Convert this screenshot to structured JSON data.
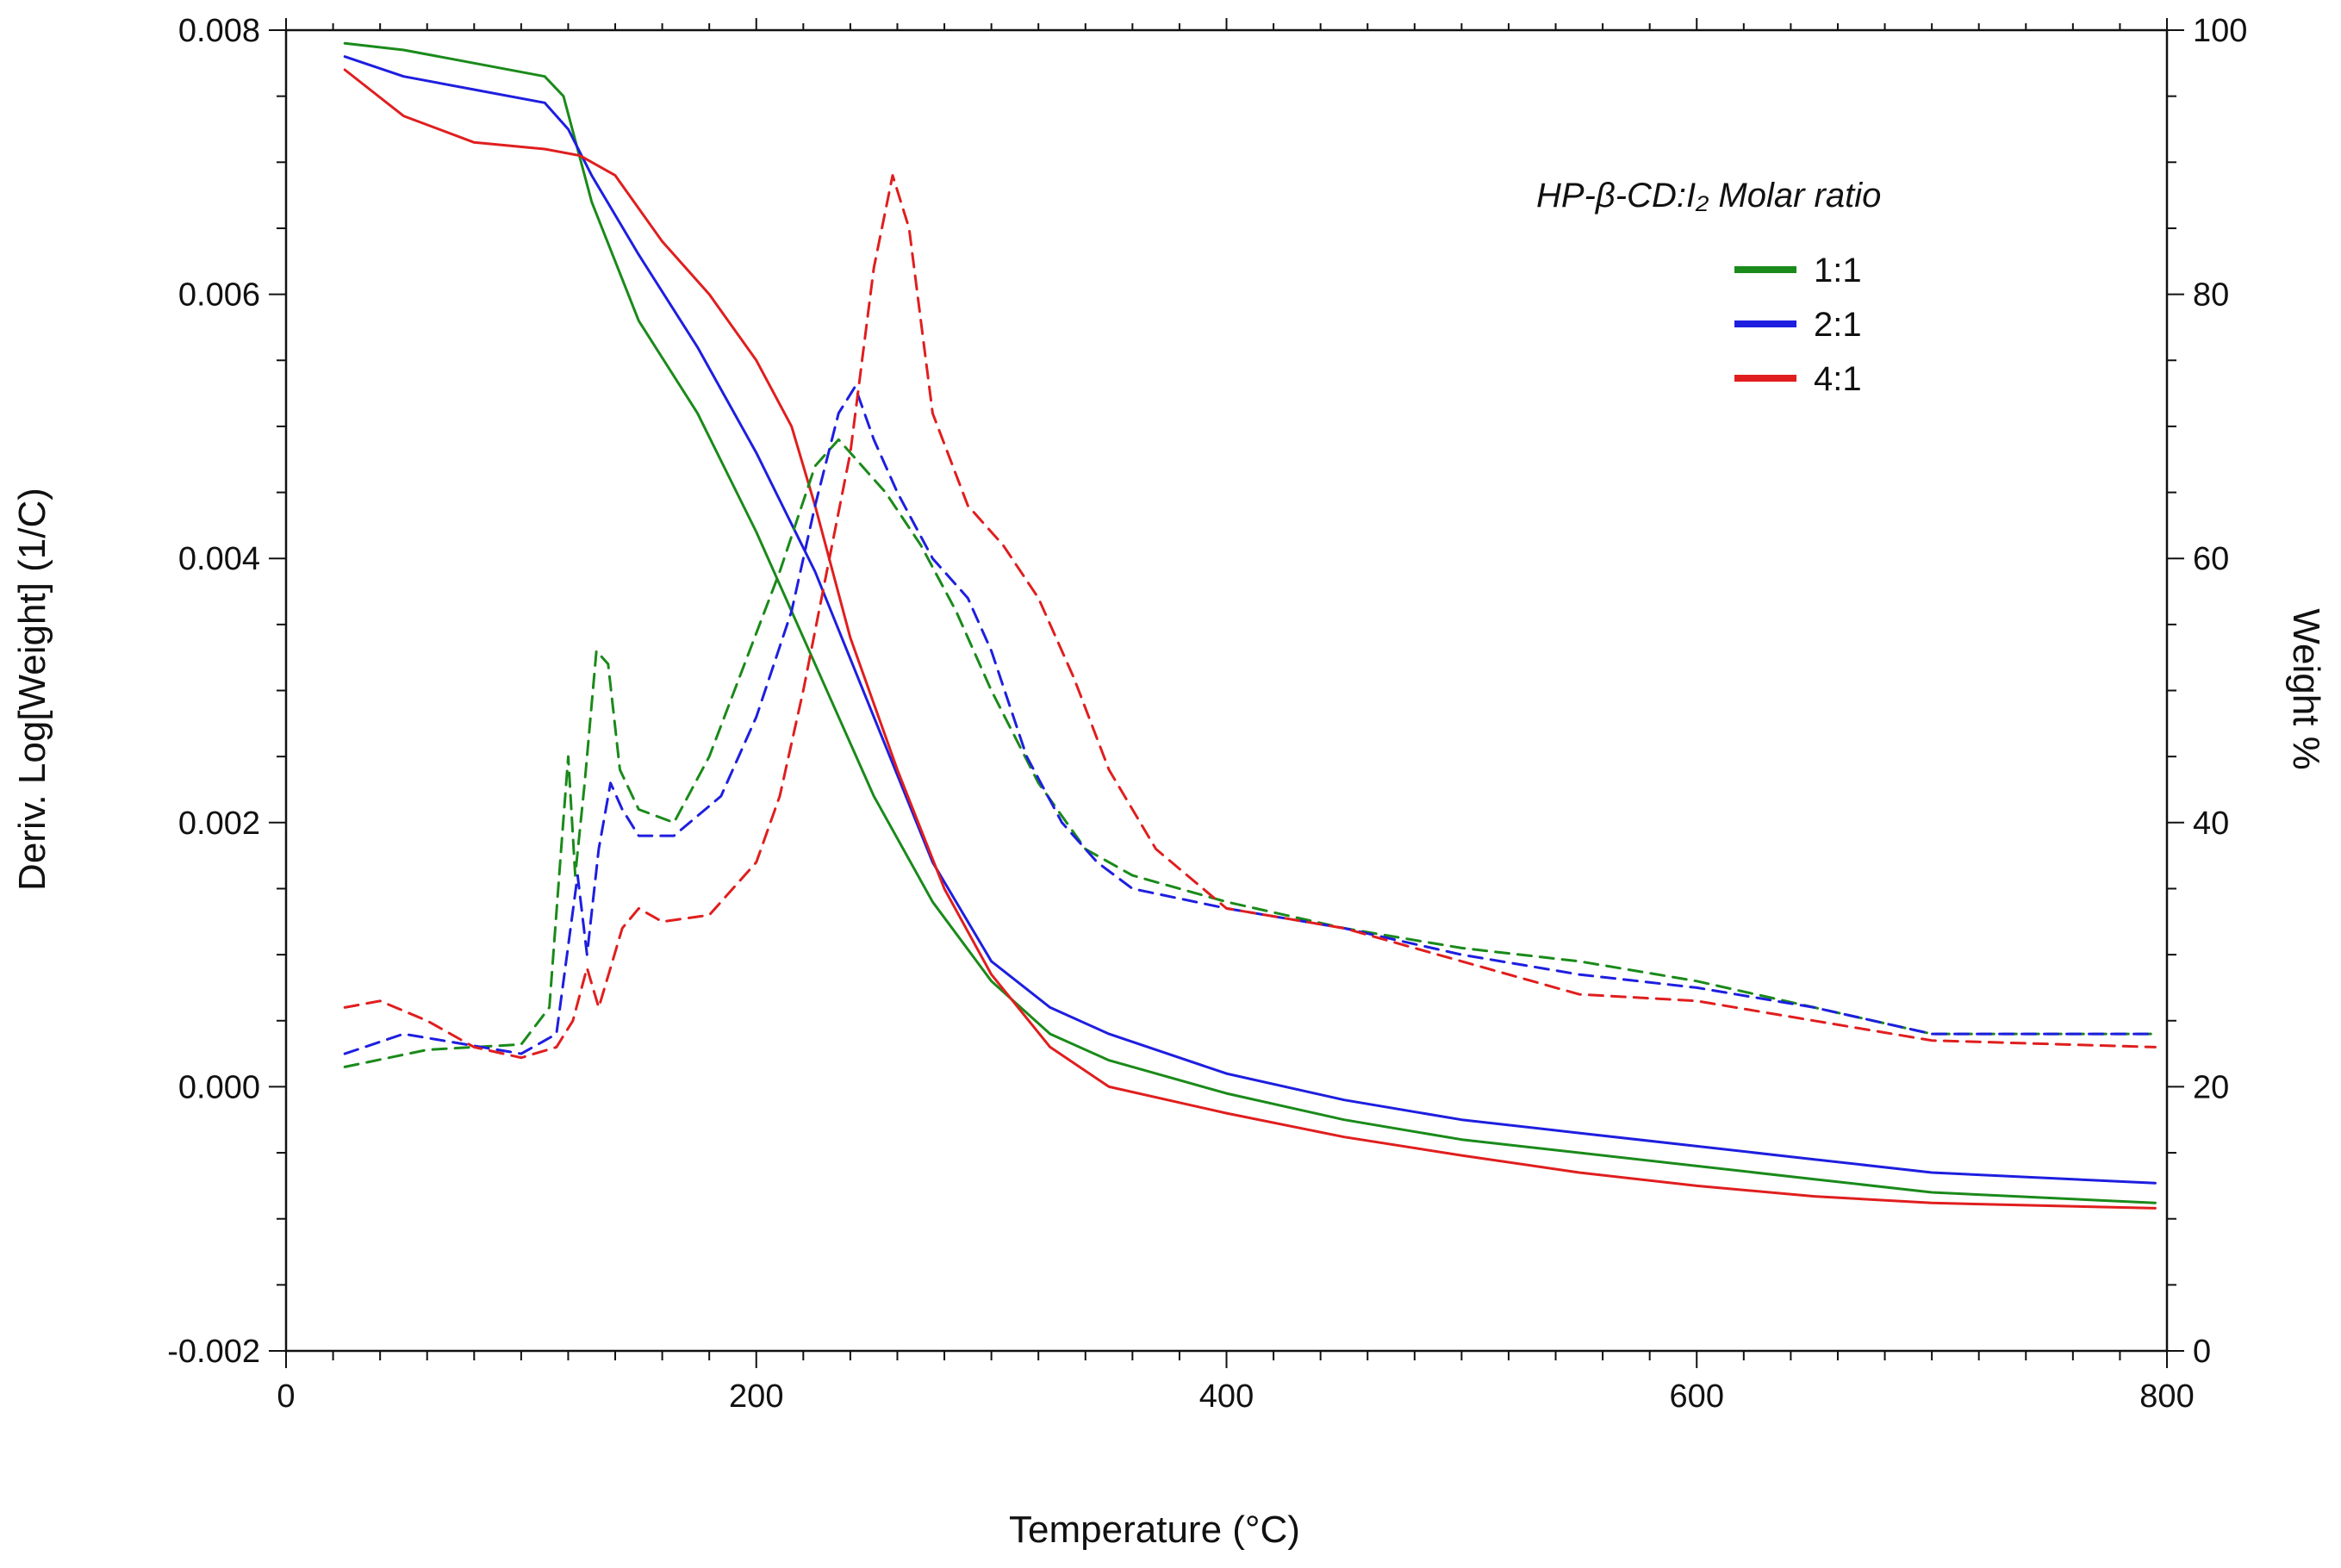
{
  "chart_data": {
    "type": "line",
    "xlabel": "Temperature (°C)",
    "ylabel_left": "Deriv. Log[Weight] (1/C)",
    "ylabel_right": "Weight %",
    "x_range": [
      0,
      800
    ],
    "y_left_range": [
      -0.002,
      0.008
    ],
    "y_right_range": [
      0,
      100
    ],
    "x_ticks": [
      "0",
      "200",
      "400",
      "600",
      "800"
    ],
    "y_left_ticks": [
      "-0.002",
      "0.000",
      "0.002",
      "0.004",
      "0.006",
      "0.008"
    ],
    "y_right_ticks": [
      "0",
      "20",
      "40",
      "60",
      "80",
      "100"
    ],
    "legend": {
      "title": "HP-β-CD:I₂ Molar ratio",
      "position": "top-right",
      "entries": [
        {
          "label": "1:1",
          "color": "#1a8a1a"
        },
        {
          "label": "2:1",
          "color": "#1e1ee0"
        },
        {
          "label": "4:1",
          "color": "#e01e1e"
        }
      ]
    },
    "series": [
      {
        "name": "1:1 Weight %",
        "ratio": "1:1",
        "color": "#1a8a1a",
        "style": "solid",
        "axis": "right",
        "x": [
          25,
          50,
          80,
          110,
          118,
          130,
          150,
          175,
          200,
          225,
          250,
          275,
          300,
          325,
          350,
          400,
          450,
          500,
          550,
          600,
          650,
          700,
          795
        ],
        "y": [
          99,
          98.5,
          97.5,
          96.5,
          95,
          87,
          78,
          71,
          62,
          52,
          42,
          34,
          28,
          24,
          22,
          19.5,
          17.5,
          16,
          15,
          14,
          13,
          12,
          11.2
        ]
      },
      {
        "name": "2:1 Weight %",
        "ratio": "2:1",
        "color": "#1e1ee0",
        "style": "solid",
        "axis": "right",
        "x": [
          25,
          50,
          80,
          110,
          120,
          130,
          150,
          175,
          200,
          225,
          250,
          275,
          300,
          325,
          350,
          400,
          450,
          500,
          550,
          600,
          650,
          700,
          795
        ],
        "y": [
          98,
          96.5,
          95.5,
          94.5,
          92.5,
          89,
          83,
          76,
          68,
          59,
          48,
          37,
          29.5,
          26,
          24,
          21,
          19,
          17.5,
          16.5,
          15.5,
          14.5,
          13.5,
          12.7
        ]
      },
      {
        "name": "4:1 Weight %",
        "ratio": "4:1",
        "color": "#e01e1e",
        "style": "solid",
        "axis": "right",
        "x": [
          25,
          50,
          80,
          110,
          125,
          140,
          160,
          180,
          200,
          215,
          225,
          240,
          260,
          280,
          300,
          325,
          350,
          400,
          450,
          500,
          550,
          600,
          650,
          700,
          795
        ],
        "y": [
          97,
          93.5,
          91.5,
          91,
          90.5,
          89,
          84,
          80,
          75,
          70,
          64,
          54,
          44,
          35,
          28.5,
          23,
          20,
          18,
          16.2,
          14.8,
          13.5,
          12.5,
          11.7,
          11.2,
          10.8
        ]
      },
      {
        "name": "1:1 Deriv.",
        "ratio": "1:1",
        "color": "#1a8a1a",
        "style": "dashed",
        "axis": "left",
        "x": [
          25,
          60,
          100,
          112,
          117,
          120,
          123,
          127,
          132,
          137,
          142,
          150,
          165,
          180,
          195,
          210,
          225,
          235,
          245,
          255,
          270,
          285,
          300,
          320,
          340,
          360,
          400,
          450,
          500,
          550,
          600,
          650,
          700,
          795
        ],
        "y": [
          0.00015,
          0.00028,
          0.00032,
          0.0006,
          0.0018,
          0.0025,
          0.0016,
          0.0023,
          0.0033,
          0.0032,
          0.0024,
          0.0021,
          0.002,
          0.0025,
          0.0032,
          0.0039,
          0.0047,
          0.0049,
          0.0047,
          0.0045,
          0.0041,
          0.0036,
          0.003,
          0.0023,
          0.0018,
          0.0016,
          0.0014,
          0.0012,
          0.00105,
          0.00095,
          0.0008,
          0.0006,
          0.0004,
          0.0004
        ]
      },
      {
        "name": "2:1 Deriv.",
        "ratio": "2:1",
        "color": "#1e1ee0",
        "style": "dashed",
        "axis": "left",
        "x": [
          25,
          50,
          100,
          115,
          121,
          124,
          128,
          133,
          138,
          143,
          150,
          165,
          185,
          200,
          215,
          225,
          235,
          242,
          250,
          260,
          275,
          290,
          300,
          315,
          330,
          345,
          360,
          400,
          450,
          500,
          550,
          600,
          650,
          700,
          795
        ],
        "y": [
          0.00025,
          0.0004,
          0.00025,
          0.0004,
          0.0012,
          0.0016,
          0.001,
          0.0018,
          0.0023,
          0.0021,
          0.0019,
          0.0019,
          0.0022,
          0.0028,
          0.0036,
          0.0044,
          0.0051,
          0.0053,
          0.0049,
          0.0045,
          0.004,
          0.0037,
          0.0033,
          0.0025,
          0.002,
          0.0017,
          0.0015,
          0.00135,
          0.0012,
          0.001,
          0.00085,
          0.00075,
          0.0006,
          0.0004,
          0.0004
        ]
      },
      {
        "name": "4:1 Deriv.",
        "ratio": "4:1",
        "color": "#e01e1e",
        "style": "dashed",
        "axis": "left",
        "x": [
          25,
          40,
          60,
          80,
          100,
          115,
          122,
          128,
          133,
          138,
          143,
          150,
          160,
          180,
          200,
          210,
          220,
          230,
          240,
          250,
          258,
          265,
          275,
          290,
          305,
          320,
          335,
          350,
          370,
          400,
          450,
          500,
          550,
          600,
          650,
          700,
          795
        ],
        "y": [
          0.0006,
          0.00065,
          0.0005,
          0.0003,
          0.00022,
          0.0003,
          0.0005,
          0.0009,
          0.0006,
          0.0009,
          0.0012,
          0.00135,
          0.00125,
          0.0013,
          0.0017,
          0.0022,
          0.003,
          0.0039,
          0.0048,
          0.0062,
          0.0069,
          0.0065,
          0.0051,
          0.0044,
          0.0041,
          0.0037,
          0.0031,
          0.0024,
          0.0018,
          0.00135,
          0.0012,
          0.00095,
          0.0007,
          0.00065,
          0.0005,
          0.00035,
          0.0003
        ]
      }
    ]
  }
}
